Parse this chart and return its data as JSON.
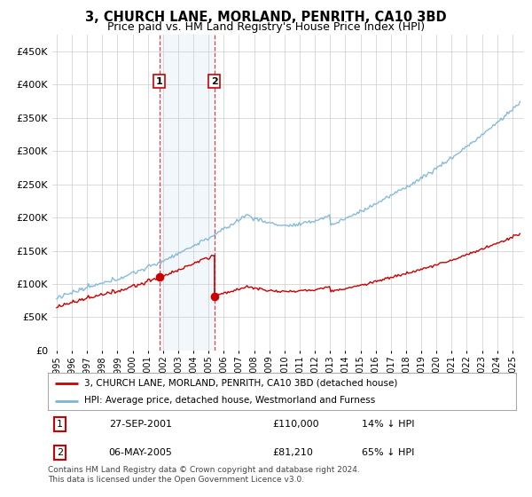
{
  "title": "3, CHURCH LANE, MORLAND, PENRITH, CA10 3BD",
  "subtitle": "Price paid vs. HM Land Registry's House Price Index (HPI)",
  "ylim": [
    0,
    475000
  ],
  "yticks": [
    0,
    50000,
    100000,
    150000,
    200000,
    250000,
    300000,
    350000,
    400000,
    450000
  ],
  "hpi_color": "#7ab4d8",
  "price_color": "#cc0000",
  "t1_year": 2001.75,
  "t1_price": 110000,
  "t2_year": 2005.375,
  "t2_price": 81210,
  "legend_property": "3, CHURCH LANE, MORLAND, PENRITH, CA10 3BD (detached house)",
  "legend_hpi": "HPI: Average price, detached house, Westmorland and Furness",
  "footnote": "Contains HM Land Registry data © Crown copyright and database right 2024.\nThis data is licensed under the Open Government Licence v3.0.",
  "background_color": "#ffffff",
  "grid_color": "#cccccc",
  "shading_color": "#daeaf7",
  "t1_label": "1",
  "t2_label": "2",
  "t1_date": "27-SEP-2001",
  "t2_date": "06-MAY-2005",
  "t1_hpi_diff": "14% ↓ HPI",
  "t2_hpi_diff": "65% ↓ HPI",
  "t1_price_str": "£110,000",
  "t2_price_str": "£81,210"
}
